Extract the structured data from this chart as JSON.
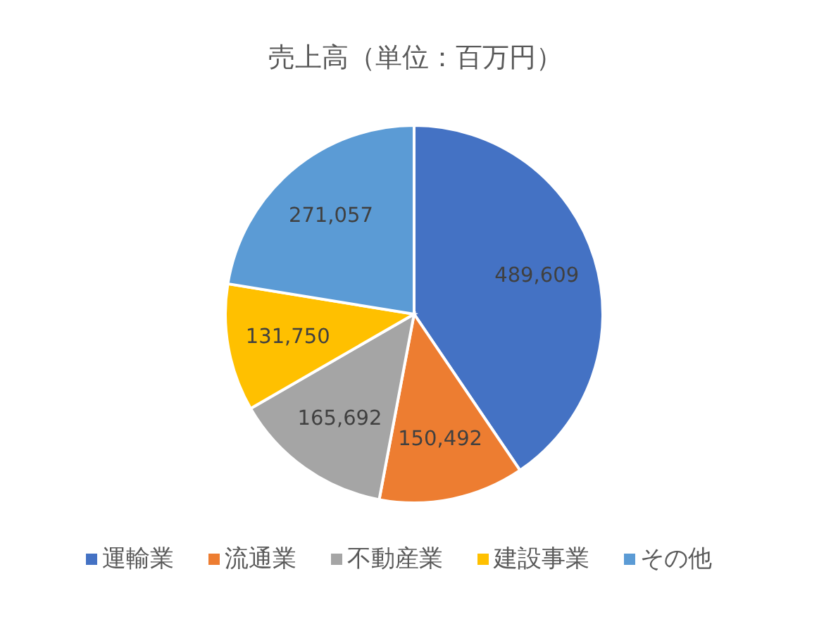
{
  "chart_data": {
    "type": "pie",
    "title": "売上高（単位：百万円）",
    "categories": [
      "運輸業",
      "流通業",
      "不動産業",
      "建設事業",
      "その他"
    ],
    "values": [
      489609,
      150492,
      165692,
      131750,
      271057
    ],
    "colors": [
      "#4472c4",
      "#ed7d31",
      "#a5a5a5",
      "#ffc000",
      "#5b9bd5"
    ],
    "value_labels": [
      "489,609",
      "150,492",
      "165,692",
      "131,750",
      "271,057"
    ],
    "legend": "bottom"
  }
}
